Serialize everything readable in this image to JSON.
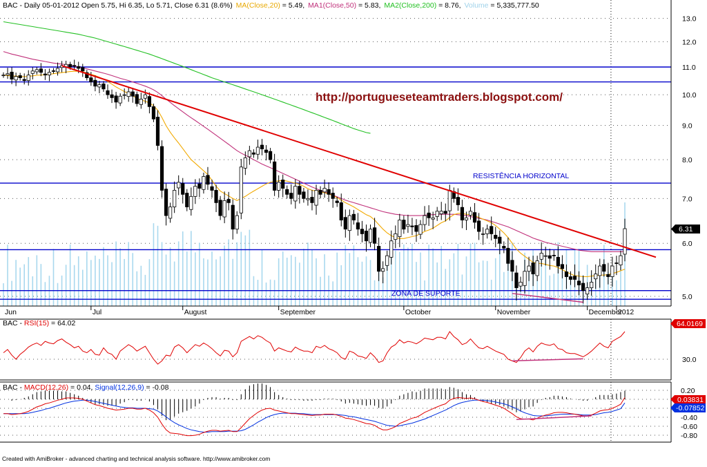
{
  "header": {
    "symbol": "BAC",
    "title": "BAC - Daily 05-01-2012 Open 5.75, Hi 6.35, Lo 5.71, Close 6.31 (8.6%)",
    "ma_label": "MA(Close,20)",
    "ma_value": " = 5.49,",
    "ma1_label": "MA1(Close,50)",
    "ma1_value": " = 5.83,",
    "ma2_label": "MA2(Close,200)",
    "ma2_value": " = 8.76,",
    "vol_label": "Volume",
    "vol_value": " = 5,335,777.50"
  },
  "rsi_header": {
    "prefix": "BAC - ",
    "name": "RSI(15)",
    "value": " = 64.02"
  },
  "macd_header": {
    "prefix": "BAC - ",
    "name": "MACD(12,26)",
    "value": " = 0.04, ",
    "sig_name": "Signal(12,26,9)",
    "sig_value": " = -0.08"
  },
  "annotations": {
    "url": "http://portugueseteamtraders.blogspot.com/",
    "resistance": "RESISTÊNCIA HORIZONTAL",
    "support": "ZONA DE SUPORTE"
  },
  "badges": {
    "price": "6.31",
    "rsi": "64.0169",
    "macd": "0.03831",
    "signal": "-0.07852"
  },
  "footer": "Created with AmiBroker - advanced charting and technical analysis software. http://www.amibroker.com",
  "colors": {
    "candle": "#000000",
    "ma20": "#f2a900",
    "ma50": "#c0307a",
    "ma200": "#22c022",
    "trendline": "#e00000",
    "hline": "#0000cc",
    "volume": "#a8d8ee",
    "rsi": "#e00000",
    "macd": "#e00000",
    "signal": "#0030e0",
    "url": "#8b1010"
  },
  "chart_data": [
    {
      "type": "candlestick",
      "title": "BAC - Daily 05-01-2012",
      "x_labels": [
        "Jun",
        "Jul",
        "August",
        "September",
        "October",
        "November",
        "December",
        "2012"
      ],
      "yticks": [
        "13.0",
        "12.0",
        "11.0",
        "10.0",
        "9.0",
        "8.0",
        "7.0",
        "6.0",
        "5.0"
      ],
      "y_scale": "log",
      "ylim": [
        4.85,
        13.3
      ],
      "last": {
        "date": "05-01-2012",
        "open": 5.75,
        "high": 6.35,
        "low": 5.71,
        "close": 6.31,
        "change_pct": 8.6
      },
      "horizontal_lines": [
        11.0,
        10.45,
        7.38,
        5.87,
        5.1,
        4.95
      ],
      "trendline": {
        "from": {
          "x": "early Jul",
          "y": 11.05
        },
        "to": {
          "x": "early Jan 2012",
          "y": 5.7
        }
      },
      "series": [
        {
          "name": "MA(Close,20)",
          "last": 5.49
        },
        {
          "name": "MA1(Close,50)",
          "last": 5.83
        },
        {
          "name": "MA2(Close,200)",
          "last": 8.76
        },
        {
          "name": "Volume",
          "last": 5335777.5
        }
      ],
      "closes": [
        10.7,
        10.75,
        10.55,
        10.65,
        10.6,
        10.5,
        10.7,
        10.85,
        10.9,
        10.8,
        10.7,
        10.8,
        10.85,
        10.95,
        11.05,
        11.1,
        11.0,
        11.05,
        10.95,
        10.85,
        10.6,
        10.45,
        10.3,
        10.35,
        10.2,
        10.0,
        9.9,
        9.75,
        9.95,
        10.0,
        10.1,
        9.95,
        9.7,
        9.85,
        10.0,
        9.6,
        9.2,
        8.4,
        7.2,
        6.6,
        6.8,
        7.2,
        7.4,
        7.1,
        6.8,
        7.05,
        7.3,
        7.25,
        7.55,
        7.35,
        7.2,
        6.9,
        6.6,
        6.95,
        6.9,
        6.3,
        6.6,
        7.8,
        8.05,
        8.25,
        8.15,
        8.35,
        8.3,
        8.2,
        8.0,
        7.2,
        7.4,
        7.25,
        7.1,
        7.0,
        7.3,
        7.1,
        7.0,
        7.0,
        6.9,
        7.2,
        7.1,
        7.25,
        7.1,
        7.0,
        6.9,
        6.5,
        6.3,
        6.6,
        6.5,
        6.3,
        6.2,
        6.05,
        6.3,
        6.0,
        5.45,
        5.5,
        5.75,
        6.05,
        6.2,
        6.5,
        6.3,
        6.4,
        6.35,
        6.25,
        6.4,
        6.6,
        6.55,
        6.55,
        6.7,
        6.7,
        6.65,
        7.2,
        7.0,
        6.85,
        6.5,
        6.55,
        6.7,
        6.45,
        6.25,
        6.2,
        6.3,
        6.2,
        6.1,
        6.0,
        5.9,
        5.6,
        5.45,
        5.15,
        5.25,
        5.45,
        5.55,
        5.4,
        5.65,
        5.8,
        5.75,
        5.7,
        5.75,
        5.55,
        5.5,
        5.35,
        5.3,
        5.3,
        5.2,
        5.1,
        5.15,
        5.25,
        5.4,
        5.55,
        5.45,
        5.35,
        5.55,
        5.6,
        5.75,
        6.31
      ],
      "ma20": [
        10.7,
        10.68,
        10.67,
        10.66,
        10.65,
        10.64,
        10.65,
        10.67,
        10.69,
        10.7,
        10.71,
        10.73,
        10.75,
        10.77,
        10.79,
        10.81,
        10.83,
        10.84,
        10.84,
        10.82,
        10.78,
        10.73,
        10.68,
        10.62,
        10.55,
        10.46,
        10.37,
        10.27,
        10.19,
        10.11,
        10.04,
        9.97,
        9.88,
        9.82,
        9.78,
        9.72,
        9.63,
        9.48,
        9.25,
        8.99,
        8.79,
        8.62,
        8.47,
        8.31,
        8.15,
        8.0,
        7.9,
        7.8,
        7.7,
        7.6,
        7.45,
        7.3,
        7.18,
        7.12,
        7.06,
        7.0,
        6.95,
        7.0,
        7.05,
        7.12,
        7.18,
        7.24,
        7.3,
        7.36,
        7.4,
        7.42,
        7.44,
        7.45,
        7.43,
        7.4,
        7.38,
        7.35,
        7.3,
        7.24,
        7.2,
        7.18,
        7.16,
        7.14,
        7.11,
        7.07,
        7.02,
        6.96,
        6.9,
        6.85,
        6.8,
        6.74,
        6.68,
        6.62,
        6.58,
        6.5,
        6.4,
        6.3,
        6.22,
        6.16,
        6.12,
        6.1,
        6.1,
        6.12,
        6.14,
        6.16,
        6.2,
        6.25,
        6.28,
        6.32,
        6.38,
        6.44,
        6.48,
        6.56,
        6.62,
        6.65,
        6.65,
        6.63,
        6.62,
        6.6,
        6.56,
        6.52,
        6.48,
        6.44,
        6.38,
        6.3,
        6.22,
        6.12,
        6.0,
        5.88,
        5.8,
        5.74,
        5.68,
        5.62,
        5.6,
        5.6,
        5.58,
        5.56,
        5.55,
        5.52,
        5.48,
        5.44,
        5.4,
        5.37,
        5.36,
        5.35,
        5.35,
        5.36,
        5.37,
        5.38,
        5.38,
        5.39,
        5.41,
        5.43,
        5.46,
        5.49
      ],
      "ma50": [
        11.6,
        11.55,
        11.5,
        11.46,
        11.42,
        11.38,
        11.34,
        11.3,
        11.27,
        11.24,
        11.21,
        11.18,
        11.15,
        11.13,
        11.11,
        11.09,
        11.06,
        11.03,
        11.0,
        10.97,
        10.93,
        10.89,
        10.85,
        10.81,
        10.77,
        10.73,
        10.68,
        10.63,
        10.58,
        10.54,
        10.5,
        10.45,
        10.4,
        10.35,
        10.3,
        10.24,
        10.17,
        10.08,
        9.97,
        9.85,
        9.74,
        9.63,
        9.53,
        9.43,
        9.33,
        9.24,
        9.15,
        9.06,
        8.97,
        8.88,
        8.79,
        8.7,
        8.61,
        8.52,
        8.43,
        8.34,
        8.25,
        8.18,
        8.12,
        8.06,
        8.0,
        7.94,
        7.88,
        7.83,
        7.78,
        7.73,
        7.68,
        7.63,
        7.58,
        7.53,
        7.48,
        7.43,
        7.38,
        7.33,
        7.28,
        7.24,
        7.2,
        7.16,
        7.12,
        7.08,
        7.04,
        7.0,
        6.96,
        6.93,
        6.9,
        6.87,
        6.84,
        6.81,
        6.78,
        6.75,
        6.72,
        6.69,
        6.67,
        6.65,
        6.63,
        6.62,
        6.61,
        6.6,
        6.6,
        6.6,
        6.6,
        6.61,
        6.62,
        6.62,
        6.63,
        6.63,
        6.63,
        6.63,
        6.63,
        6.62,
        6.61,
        6.6,
        6.58,
        6.56,
        6.54,
        6.52,
        6.5,
        6.47,
        6.44,
        6.41,
        6.38,
        6.35,
        6.31,
        6.27,
        6.23,
        6.19,
        6.15,
        6.11,
        6.08,
        6.05,
        6.02,
        6.0,
        5.98,
        5.96,
        5.94,
        5.92,
        5.9,
        5.88,
        5.86,
        5.85,
        5.84,
        5.83,
        5.83,
        5.83,
        5.83,
        5.83,
        5.83,
        5.83,
        5.83,
        5.83
      ],
      "ma200": [
        12.85,
        12.82,
        12.79,
        12.76,
        12.73,
        12.7,
        12.67,
        12.64,
        12.61,
        12.58,
        12.55,
        12.52,
        12.49,
        12.46,
        12.43,
        12.4,
        12.37,
        12.34,
        12.31,
        12.27,
        12.23,
        12.19,
        12.15,
        12.1,
        12.05,
        12.0,
        11.95,
        11.9,
        11.85,
        11.8,
        11.75,
        11.7,
        11.65,
        11.6,
        11.55,
        11.5,
        11.44,
        11.38,
        11.32,
        11.26,
        11.2,
        11.14,
        11.08,
        11.02,
        10.96,
        10.9,
        10.84,
        10.78,
        10.72,
        10.66,
        10.6,
        10.55,
        10.5,
        10.45,
        10.4,
        10.35,
        10.3,
        10.25,
        10.2,
        10.15,
        10.1,
        10.05,
        10.0,
        9.95,
        9.9,
        9.85,
        9.8,
        9.75,
        9.7,
        9.65,
        9.6,
        9.55,
        9.5,
        9.45,
        9.4,
        9.35,
        9.3,
        9.25,
        9.2,
        9.15,
        9.1,
        9.05,
        9.0,
        8.95,
        8.9,
        8.86,
        8.82,
        8.78,
        8.76
      ]
    },
    {
      "type": "line",
      "title": "BAC - RSI(15) = 64.02",
      "name": "RSI(15)",
      "yticks": [
        "30.0"
      ],
      "ylim": [
        15,
        75
      ],
      "last": 64.0169,
      "values": [
        38,
        42,
        35,
        30,
        36,
        40,
        45,
        48,
        50,
        47,
        52,
        50,
        49,
        53,
        55,
        51,
        48,
        44,
        46,
        40,
        38,
        42,
        36,
        35,
        44,
        38,
        36,
        30,
        40,
        44,
        48,
        45,
        40,
        43,
        46,
        38,
        30,
        24,
        28,
        35,
        34,
        45,
        48,
        44,
        38,
        43,
        48,
        46,
        50,
        47,
        43,
        38,
        34,
        41,
        40,
        33,
        38,
        52,
        55,
        58,
        55,
        59,
        57,
        53,
        50,
        40,
        44,
        42,
        40,
        39,
        45,
        42,
        40,
        40,
        38,
        46,
        44,
        47,
        43,
        41,
        38,
        32,
        30,
        40,
        38,
        34,
        33,
        31,
        38,
        33,
        26,
        28,
        38,
        45,
        48,
        54,
        50,
        52,
        51,
        49,
        52,
        56,
        55,
        54,
        57,
        57,
        55,
        64,
        58,
        54,
        48,
        50,
        55,
        49,
        44,
        43,
        46,
        43,
        40,
        38,
        36,
        30,
        28,
        26,
        32,
        40,
        44,
        39,
        46,
        50,
        48,
        47,
        49,
        43,
        42,
        38,
        37,
        37,
        35,
        33,
        36,
        40,
        45,
        50,
        46,
        44,
        52,
        55,
        58,
        64
      ]
    },
    {
      "type": "line",
      "title": "BAC - MACD(12,26) = 0.04, Signal(12,26,9) = -0.08",
      "yticks": [
        "0.20",
        "0.00",
        "-0.20",
        "-0.40",
        "-0.60",
        "-0.80"
      ],
      "ylim": [
        -0.9,
        0.3
      ],
      "series": [
        {
          "name": "MACD(12,26)",
          "last": 0.03831
        },
        {
          "name": "Signal(12,26,9)",
          "last": -0.07852
        }
      ],
      "macd": [
        -0.32,
        -0.32,
        -0.34,
        -0.33,
        -0.32,
        -0.3,
        -0.27,
        -0.22,
        -0.17,
        -0.14,
        -0.1,
        -0.08,
        -0.05,
        -0.02,
        0.0,
        0.03,
        0.03,
        0.03,
        0.02,
        0.0,
        -0.04,
        -0.08,
        -0.12,
        -0.14,
        -0.17,
        -0.2,
        -0.22,
        -0.24,
        -0.23,
        -0.22,
        -0.2,
        -0.2,
        -0.22,
        -0.22,
        -0.2,
        -0.24,
        -0.3,
        -0.4,
        -0.55,
        -0.68,
        -0.75,
        -0.76,
        -0.77,
        -0.79,
        -0.81,
        -0.81,
        -0.8,
        -0.78,
        -0.74,
        -0.71,
        -0.69,
        -0.69,
        -0.71,
        -0.7,
        -0.69,
        -0.72,
        -0.72,
        -0.63,
        -0.53,
        -0.43,
        -0.36,
        -0.29,
        -0.24,
        -0.21,
        -0.2,
        -0.24,
        -0.26,
        -0.28,
        -0.3,
        -0.32,
        -0.32,
        -0.33,
        -0.34,
        -0.35,
        -0.36,
        -0.35,
        -0.35,
        -0.33,
        -0.33,
        -0.33,
        -0.35,
        -0.38,
        -0.42,
        -0.43,
        -0.45,
        -0.48,
        -0.51,
        -0.54,
        -0.55,
        -0.58,
        -0.64,
        -0.68,
        -0.68,
        -0.65,
        -0.61,
        -0.54,
        -0.5,
        -0.46,
        -0.42,
        -0.4,
        -0.35,
        -0.29,
        -0.25,
        -0.21,
        -0.17,
        -0.13,
        -0.1,
        -0.02,
        0.02,
        0.04,
        0.03,
        0.02,
        0.03,
        0.01,
        -0.02,
        -0.05,
        -0.07,
        -0.1,
        -0.13,
        -0.16,
        -0.2,
        -0.26,
        -0.32,
        -0.39,
        -0.43,
        -0.44,
        -0.44,
        -0.46,
        -0.42,
        -0.38,
        -0.35,
        -0.33,
        -0.3,
        -0.29,
        -0.29,
        -0.3,
        -0.32,
        -0.33,
        -0.35,
        -0.37,
        -0.37,
        -0.35,
        -0.31,
        -0.26,
        -0.24,
        -0.23,
        -0.2,
        -0.16,
        -0.11,
        0.04
      ],
      "signal": [
        -0.32,
        -0.32,
        -0.32,
        -0.32,
        -0.32,
        -0.32,
        -0.31,
        -0.29,
        -0.27,
        -0.25,
        -0.22,
        -0.2,
        -0.17,
        -0.14,
        -0.11,
        -0.08,
        -0.06,
        -0.04,
        -0.03,
        -0.02,
        -0.02,
        -0.03,
        -0.05,
        -0.07,
        -0.09,
        -0.11,
        -0.13,
        -0.15,
        -0.17,
        -0.18,
        -0.19,
        -0.19,
        -0.2,
        -0.2,
        -0.2,
        -0.21,
        -0.22,
        -0.26,
        -0.32,
        -0.39,
        -0.46,
        -0.52,
        -0.57,
        -0.61,
        -0.65,
        -0.68,
        -0.7,
        -0.72,
        -0.73,
        -0.73,
        -0.72,
        -0.72,
        -0.72,
        -0.72,
        -0.71,
        -0.71,
        -0.71,
        -0.7,
        -0.67,
        -0.62,
        -0.57,
        -0.51,
        -0.46,
        -0.41,
        -0.37,
        -0.34,
        -0.32,
        -0.31,
        -0.31,
        -0.31,
        -0.31,
        -0.32,
        -0.32,
        -0.33,
        -0.34,
        -0.34,
        -0.34,
        -0.34,
        -0.34,
        -0.34,
        -0.34,
        -0.35,
        -0.36,
        -0.38,
        -0.39,
        -0.41,
        -0.43,
        -0.45,
        -0.47,
        -0.49,
        -0.52,
        -0.55,
        -0.58,
        -0.59,
        -0.6,
        -0.59,
        -0.57,
        -0.55,
        -0.53,
        -0.5,
        -0.47,
        -0.44,
        -0.4,
        -0.36,
        -0.32,
        -0.28,
        -0.24,
        -0.19,
        -0.14,
        -0.1,
        -0.07,
        -0.05,
        -0.03,
        -0.02,
        -0.02,
        -0.02,
        -0.03,
        -0.04,
        -0.06,
        -0.08,
        -0.1,
        -0.13,
        -0.17,
        -0.21,
        -0.26,
        -0.3,
        -0.33,
        -0.36,
        -0.37,
        -0.37,
        -0.37,
        -0.36,
        -0.35,
        -0.34,
        -0.33,
        -0.33,
        -0.33,
        -0.33,
        -0.34,
        -0.35,
        -0.35,
        -0.35,
        -0.34,
        -0.32,
        -0.3,
        -0.29,
        -0.27,
        -0.24,
        -0.21,
        -0.08
      ]
    }
  ]
}
